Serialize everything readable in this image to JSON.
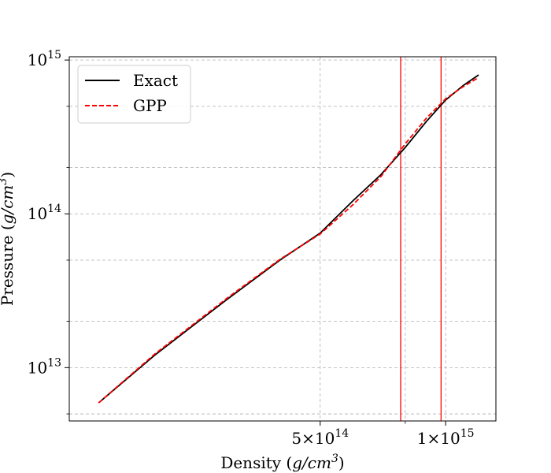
{
  "chart_data": {
    "type": "line",
    "title": "",
    "xlabel_prefix": "Density (",
    "xlabel_var": "g/cm",
    "xlabel_exp": "3",
    "xlabel_suffix": ")",
    "ylabel_prefix": "Pressure (",
    "ylabel_var": "g/cm",
    "ylabel_exp": "3",
    "ylabel_suffix": ")",
    "x_scale": "log",
    "y_scale": "log",
    "xlim": [
      125000000000000.0,
      1320000000000000.0
    ],
    "ylim": [
      4500000000000.0,
      1050000000000000.0
    ],
    "grid": true,
    "legend_position": "top-left",
    "x_ticks": [
      {
        "value": 500000000000000.0,
        "base": "5×10",
        "exp": "14"
      },
      {
        "value": 1000000000000000.0,
        "base": "1×10",
        "exp": "15"
      }
    ],
    "x_minor_grid": [
      800000000000000.0
    ],
    "y_ticks": [
      {
        "value": 10000000000000.0,
        "base": "10",
        "exp": "13"
      },
      {
        "value": 100000000000000.0,
        "base": "10",
        "exp": "14"
      },
      {
        "value": 1000000000000000.0,
        "base": "10",
        "exp": "15"
      }
    ],
    "y_minor_grid": [
      5000000000000.0,
      20000000000000.0,
      50000000000000.0,
      200000000000000.0,
      500000000000000.0
    ],
    "vlines": [
      {
        "x": 780000000000000.0,
        "color": "#ff0000"
      },
      {
        "x": 975000000000000.0,
        "color": "#ff0000"
      }
    ],
    "series": [
      {
        "name": "Exact",
        "color": "#000000",
        "dash": "solid",
        "x": [
          147000000000000.0,
          200000000000000.0,
          300000000000000.0,
          400000000000000.0,
          500000000000000.0,
          600000000000000.0,
          700000000000000.0,
          800000000000000.0,
          900000000000000.0,
          1000000000000000.0,
          1100000000000000.0,
          1200000000000000.0
        ],
        "y": [
          5900000000000.0,
          12000000000000.0,
          28000000000000.0,
          50000000000000.0,
          75000000000000.0,
          122000000000000.0,
          180000000000000.0,
          270000000000000.0,
          400000000000000.0,
          550000000000000.0,
          680000000000000.0,
          800000000000000.0
        ]
      },
      {
        "name": "GPP",
        "color": "#ff0000",
        "dash": "dashed",
        "x": [
          147000000000000.0,
          200000000000000.0,
          300000000000000.0,
          400000000000000.0,
          500000000000000.0,
          600000000000000.0,
          700000000000000.0,
          800000000000000.0,
          900000000000000.0,
          1000000000000000.0,
          1100000000000000.0,
          1200000000000000.0
        ],
        "y": [
          5900000000000.0,
          12200000000000.0,
          28500000000000.0,
          50500000000000.0,
          74000000000000.0,
          115000000000000.0,
          175000000000000.0,
          285000000000000.0,
          420000000000000.0,
          560000000000000.0,
          670000000000000.0,
          770000000000000.0
        ]
      }
    ]
  }
}
